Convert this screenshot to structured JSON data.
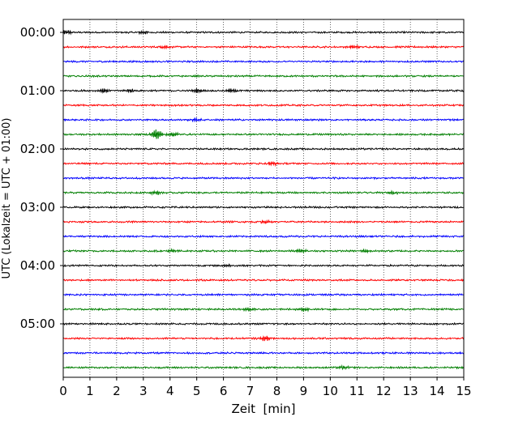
{
  "chart_data": {
    "type": "line",
    "xlabel": "Zeit  [min]",
    "ylabel": "UTC (Lokalzeit = UTC + 01:00)",
    "xlim": [
      0,
      15
    ],
    "x_ticks": [
      "0",
      "1",
      "2",
      "3",
      "4",
      "5",
      "6",
      "7",
      "8",
      "9",
      "10",
      "11",
      "12",
      "13",
      "14",
      "15"
    ],
    "y_tick_labels": [
      "00:00",
      "01:00",
      "02:00",
      "03:00",
      "04:00",
      "05:00"
    ],
    "grid": "vertical-dotted",
    "trace_minutes": 15,
    "traces_per_hour": 4,
    "trace_colors": [
      "#000000",
      "#ff0000",
      "#0000ff",
      "#007f00"
    ],
    "trace_count": 24,
    "events": [
      {
        "trace": 0,
        "x": 0.1,
        "amp": 2.5
      },
      {
        "trace": 0,
        "x": 3.0,
        "amp": 1.8
      },
      {
        "trace": 1,
        "x": 3.8,
        "amp": 1.6
      },
      {
        "trace": 1,
        "x": 10.9,
        "amp": 1.6
      },
      {
        "trace": 4,
        "x": 1.5,
        "amp": 2.2
      },
      {
        "trace": 4,
        "x": 2.5,
        "amp": 2.0
      },
      {
        "trace": 4,
        "x": 5.0,
        "amp": 2.5
      },
      {
        "trace": 4,
        "x": 6.3,
        "amp": 2.2
      },
      {
        "trace": 6,
        "x": 4.9,
        "amp": 1.8
      },
      {
        "trace": 7,
        "x": 3.5,
        "amp": 6.0
      },
      {
        "trace": 7,
        "x": 4.1,
        "amp": 2.5
      },
      {
        "trace": 9,
        "x": 7.8,
        "amp": 2.0
      },
      {
        "trace": 11,
        "x": 3.5,
        "amp": 2.0
      },
      {
        "trace": 11,
        "x": 12.3,
        "amp": 1.8
      },
      {
        "trace": 13,
        "x": 7.6,
        "amp": 1.6
      },
      {
        "trace": 15,
        "x": 4.1,
        "amp": 1.8
      },
      {
        "trace": 15,
        "x": 8.9,
        "amp": 1.8
      },
      {
        "trace": 15,
        "x": 11.3,
        "amp": 1.6
      },
      {
        "trace": 16,
        "x": 6.1,
        "amp": 1.5
      },
      {
        "trace": 19,
        "x": 9.0,
        "amp": 2.0
      },
      {
        "trace": 19,
        "x": 6.9,
        "amp": 1.6
      },
      {
        "trace": 21,
        "x": 7.6,
        "amp": 3.0
      },
      {
        "trace": 23,
        "x": 10.5,
        "amp": 1.5
      }
    ]
  }
}
